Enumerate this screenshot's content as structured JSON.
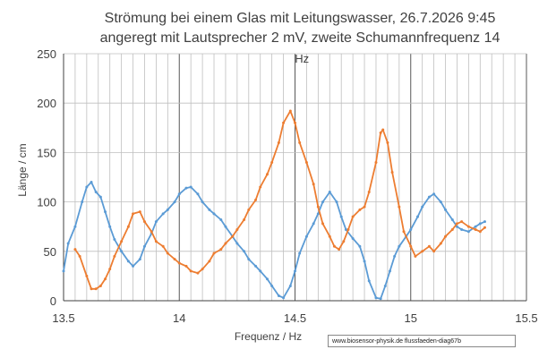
{
  "chart_data": {
    "type": "line",
    "title_line1": "Strömung bei einem Glas mit  Leitungswasser, 26.7.2026  9:45",
    "title_line2": "angeregt mit Lautsprecher 2 mV,  zweite Schumannfrequenz  14",
    "title_line3": "Hz",
    "xlabel": "Frequenz / Hz",
    "ylabel": "Länge / cm",
    "xlim": [
      13.5,
      15.5
    ],
    "ylim": [
      0,
      250
    ],
    "xticks": [
      "13.5",
      "14",
      "14.5",
      "15",
      "15.5"
    ],
    "yticks": [
      "0",
      "50",
      "100",
      "150",
      "200",
      "250"
    ],
    "grid": true,
    "legend": "none",
    "series": [
      {
        "color": "#5B9BD5",
        "x": [
          13.5,
          13.52,
          13.55,
          13.58,
          13.6,
          13.62,
          13.64,
          13.66,
          13.68,
          13.7,
          13.72,
          13.75,
          13.78,
          13.8,
          13.83,
          13.85,
          13.88,
          13.9,
          13.93,
          13.95,
          13.98,
          14.0,
          14.03,
          14.05,
          14.08,
          14.1,
          14.13,
          14.15,
          14.18,
          14.2,
          14.23,
          14.25,
          14.28,
          14.3,
          14.33,
          14.35,
          14.38,
          14.4,
          14.43,
          14.45,
          14.48,
          14.5,
          14.52,
          14.55,
          14.58,
          14.6,
          14.62,
          14.65,
          14.68,
          14.7,
          14.72,
          14.75,
          14.78,
          14.8,
          14.82,
          14.85,
          14.87,
          14.89,
          14.91,
          14.93,
          14.95,
          14.98,
          15.0,
          15.03,
          15.05,
          15.08,
          15.1,
          15.13,
          15.15,
          15.18,
          15.2,
          15.22,
          15.25,
          15.28,
          15.3,
          15.32
        ],
        "y": [
          30,
          58,
          75,
          100,
          115,
          120,
          110,
          105,
          90,
          75,
          62,
          50,
          40,
          35,
          42,
          55,
          68,
          80,
          88,
          92,
          100,
          108,
          114,
          115,
          108,
          100,
          92,
          88,
          82,
          75,
          65,
          58,
          50,
          42,
          35,
          30,
          22,
          15,
          5,
          3,
          15,
          30,
          48,
          65,
          78,
          88,
          100,
          110,
          100,
          85,
          72,
          63,
          55,
          40,
          20,
          3,
          2,
          15,
          30,
          45,
          55,
          65,
          72,
          85,
          95,
          105,
          108,
          100,
          92,
          82,
          75,
          72,
          70,
          75,
          78,
          80
        ]
      },
      {
        "color": "#ED7D31",
        "x": [
          13.55,
          13.57,
          13.6,
          13.62,
          13.64,
          13.66,
          13.68,
          13.7,
          13.72,
          13.75,
          13.78,
          13.8,
          13.83,
          13.85,
          13.88,
          13.9,
          13.93,
          13.95,
          13.98,
          14.0,
          14.03,
          14.05,
          14.08,
          14.1,
          14.13,
          14.15,
          14.18,
          14.2,
          14.23,
          14.25,
          14.28,
          14.3,
          14.33,
          14.35,
          14.38,
          14.4,
          14.43,
          14.45,
          14.48,
          14.5,
          14.52,
          14.55,
          14.58,
          14.6,
          14.62,
          14.65,
          14.67,
          14.69,
          14.71,
          14.73,
          14.75,
          14.78,
          14.8,
          14.82,
          14.85,
          14.87,
          14.88,
          14.9,
          14.92,
          14.95,
          14.97,
          15.0,
          15.02,
          15.05,
          15.08,
          15.1,
          15.13,
          15.15,
          15.18,
          15.2,
          15.22,
          15.25,
          15.28,
          15.3,
          15.32
        ],
        "y": [
          52,
          45,
          25,
          12,
          12,
          15,
          22,
          32,
          45,
          60,
          75,
          88,
          90,
          80,
          70,
          60,
          55,
          48,
          42,
          38,
          35,
          30,
          28,
          32,
          40,
          48,
          52,
          58,
          65,
          72,
          82,
          92,
          102,
          115,
          128,
          140,
          160,
          180,
          192,
          180,
          160,
          140,
          118,
          95,
          78,
          65,
          55,
          52,
          60,
          72,
          85,
          92,
          95,
          110,
          140,
          170,
          173,
          160,
          130,
          95,
          70,
          55,
          45,
          50,
          55,
          50,
          58,
          65,
          72,
          78,
          80,
          75,
          72,
          70,
          74
        ]
      }
    ]
  },
  "footer": {
    "credit": "www.biosensor-physik.de  flussfaeden-diag67b"
  }
}
